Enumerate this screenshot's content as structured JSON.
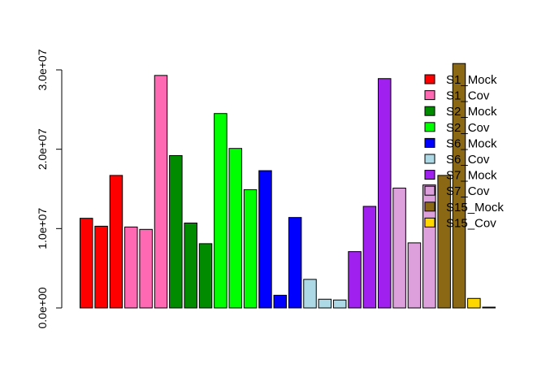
{
  "chart_data": {
    "type": "bar",
    "title": "",
    "xlabel": "",
    "ylabel": "",
    "ylim": [
      0,
      30000000
    ],
    "y_ticks": [
      0,
      10000000,
      20000000,
      30000000
    ],
    "y_tick_labels": [
      "0.0e+00",
      "1.0e+07",
      "2.0e+07",
      "3.0e+07"
    ],
    "grid": false,
    "legend_position": "top-right",
    "series": [
      {
        "name": "S1_Mock",
        "color": "#FF0000",
        "values": [
          11300000,
          10300000,
          16700000
        ]
      },
      {
        "name": "S1_Cov",
        "color": "#FF69B4",
        "values": [
          10200000,
          9900000,
          29300000
        ]
      },
      {
        "name": "S2_Mock",
        "color": "#008B00",
        "values": [
          19200000,
          10700000,
          8100000
        ]
      },
      {
        "name": "S2_Cov",
        "color": "#00FF00",
        "values": [
          24500000,
          20100000,
          14900000
        ]
      },
      {
        "name": "S6_Mock",
        "color": "#0000FF",
        "values": [
          17300000,
          1600000,
          11400000
        ]
      },
      {
        "name": "S6_Cov",
        "color": "#ADD8E6",
        "values": [
          3600000,
          1100000,
          1000000
        ]
      },
      {
        "name": "S7_Mock",
        "color": "#A020F0",
        "values": [
          7100000,
          12800000,
          28900000
        ]
      },
      {
        "name": "S7_Cov",
        "color": "#DDA0DD",
        "values": [
          15100000,
          8200000,
          15500000
        ]
      },
      {
        "name": "S15_Mock",
        "color": "#8B6914",
        "values": [
          16700000,
          30800000
        ]
      },
      {
        "name": "S15_Cov",
        "color": "#FFD700",
        "values": [
          1200000,
          100000
        ]
      }
    ]
  }
}
